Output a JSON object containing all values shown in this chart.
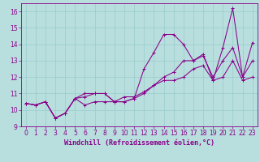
{
  "title": "",
  "xlabel": "Windchill (Refroidissement éolien,°C)",
  "ylabel": "",
  "bg_color": "#b8dede",
  "line_color": "#880088",
  "grid_color": "#99cccc",
  "xlim": [
    -0.5,
    23.5
  ],
  "ylim": [
    9.0,
    16.5
  ],
  "xticks": [
    0,
    1,
    2,
    3,
    4,
    5,
    6,
    7,
    8,
    9,
    10,
    11,
    12,
    13,
    14,
    15,
    16,
    17,
    18,
    19,
    20,
    21,
    22,
    23
  ],
  "yticks": [
    9,
    10,
    11,
    12,
    13,
    14,
    15,
    16
  ],
  "series1_x": [
    0,
    1,
    2,
    3,
    4,
    5,
    6,
    7,
    8,
    9,
    10,
    11,
    12,
    13,
    14,
    15,
    16,
    17,
    18,
    19,
    20,
    21,
    22,
    23
  ],
  "series1_y": [
    10.4,
    10.3,
    10.5,
    9.5,
    9.8,
    10.7,
    11.0,
    11.0,
    11.0,
    10.5,
    10.5,
    10.7,
    12.5,
    13.5,
    14.6,
    14.6,
    14.0,
    13.0,
    13.4,
    11.8,
    13.8,
    16.2,
    12.0,
    14.1
  ],
  "series2_x": [
    0,
    1,
    2,
    3,
    4,
    5,
    6,
    7,
    8,
    9,
    10,
    11,
    12,
    13,
    14,
    15,
    16,
    17,
    18,
    19,
    20,
    21,
    22,
    23
  ],
  "series2_y": [
    10.4,
    10.3,
    10.5,
    9.5,
    9.8,
    10.7,
    10.3,
    10.5,
    10.5,
    10.5,
    10.8,
    10.8,
    11.1,
    11.5,
    11.8,
    11.8,
    12.0,
    12.5,
    12.7,
    11.8,
    12.0,
    13.0,
    11.8,
    12.0
  ],
  "series3_x": [
    0,
    1,
    2,
    3,
    4,
    5,
    6,
    7,
    8,
    9,
    10,
    11,
    12,
    13,
    14,
    15,
    16,
    17,
    18,
    19,
    20,
    21,
    22,
    23
  ],
  "series3_y": [
    10.4,
    10.3,
    10.5,
    9.5,
    9.8,
    10.7,
    10.8,
    11.0,
    11.0,
    10.5,
    10.5,
    10.7,
    11.0,
    11.5,
    12.0,
    12.3,
    13.0,
    13.0,
    13.3,
    12.0,
    13.0,
    13.8,
    12.0,
    13.0
  ],
  "tick_fontsize": 5.5,
  "xlabel_fontsize": 6.0,
  "lw": 0.75,
  "ms": 3.0
}
